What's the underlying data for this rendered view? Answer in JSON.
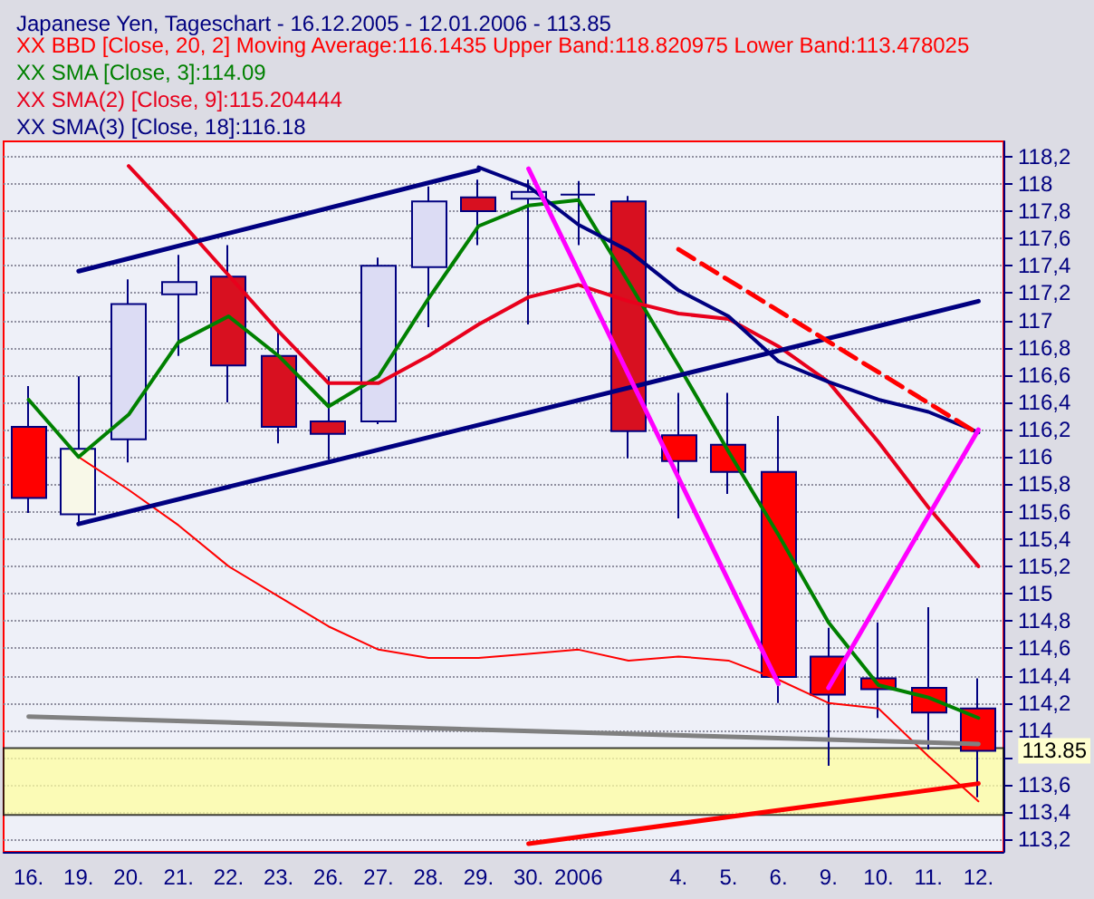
{
  "chart_data": {
    "type": "candlestick",
    "title": "Japanese Yen, Tageschart - 16.12.2005 - 12.01.2006 - 113.85",
    "categories": [
      "16.",
      "19.",
      "20.",
      "21.",
      "22.",
      "23.",
      "26.",
      "27.",
      "28.",
      "29.",
      "30.",
      "2006",
      null,
      "4.",
      "5.",
      "6.",
      "9.",
      "10.",
      "11.",
      "12."
    ],
    "ohlc": [
      [
        116.22,
        116.52,
        115.59,
        115.7
      ],
      [
        115.58,
        116.59,
        115.51,
        116.06
      ],
      [
        116.13,
        117.3,
        115.96,
        117.12
      ],
      [
        117.19,
        117.48,
        116.74,
        117.28
      ],
      [
        117.32,
        117.55,
        116.4,
        116.67
      ],
      [
        116.74,
        116.92,
        116.1,
        116.22
      ],
      [
        116.26,
        116.59,
        115.98,
        116.17
      ],
      [
        116.26,
        117.46,
        116.24,
        117.4
      ],
      [
        117.39,
        117.98,
        116.95,
        117.87
      ],
      [
        117.9,
        118.03,
        117.55,
        117.8
      ],
      [
        117.89,
        118.03,
        116.97,
        117.94
      ],
      [
        117.92,
        118.02,
        117.55,
        117.92
      ],
      [
        117.87,
        117.91,
        115.99,
        116.19
      ],
      [
        116.16,
        116.47,
        115.55,
        115.97
      ],
      [
        116.09,
        116.47,
        115.73,
        115.89
      ],
      [
        115.89,
        116.3,
        114.2,
        114.39
      ],
      [
        114.54,
        114.75,
        113.74,
        114.26
      ],
      [
        114.38,
        114.79,
        114.09,
        114.3
      ],
      [
        114.31,
        114.9,
        113.86,
        114.13
      ],
      [
        114.16,
        114.38,
        113.51,
        113.85
      ]
    ],
    "colors": [
      "#ff0000",
      "#f8f8e8",
      "#dcdcf4",
      "#dcdcf4",
      "#d81020",
      "#d81020",
      "#d81020",
      "#dcdcf4",
      "#dcdcf4",
      "#d81020",
      "#dcdcf4",
      "#000080",
      "#d81020",
      "#ff0000",
      "#ff0000",
      "#ff0000",
      "#ff0000",
      "#ff0000",
      "#ff0000",
      "#ff0000"
    ],
    "series": [
      {
        "type": "line",
        "name": "XX BBD [Close, 20, 2] Moving Average:116.1435 Upper Band:118.820975 Lower Band:113.478025",
        "color": "#ff0000",
        "values": [
          null,
          116.0,
          115.76,
          115.5,
          115.2,
          114.98,
          114.76,
          114.59,
          114.53,
          114.53,
          114.56,
          114.59,
          114.51,
          114.54,
          114.51,
          114.37,
          114.2,
          114.16,
          113.81,
          113.48
        ]
      },
      {
        "type": "line",
        "name": "XX SMA [Close, 3]:114.09",
        "color": "#008000",
        "values": [
          116.42,
          116.0,
          116.31,
          116.84,
          117.03,
          116.74,
          116.37,
          116.59,
          117.16,
          117.69,
          117.84,
          117.88,
          117.28,
          116.67,
          116.04,
          115.43,
          114.79,
          114.33,
          114.24,
          114.09
        ]
      },
      {
        "type": "line",
        "name": "XX SMA(2) [Close, 9]:115.204444",
        "color": "#e8001c",
        "values": [
          null,
          null,
          118.13,
          117.74,
          117.33,
          116.92,
          116.54,
          116.54,
          116.74,
          116.97,
          117.17,
          117.26,
          117.14,
          117.05,
          117.01,
          116.81,
          116.55,
          116.11,
          115.63,
          115.2
        ]
      },
      {
        "type": "line",
        "name": "XX SMA(3) [Close, 18]:116.18",
        "color": "#000080",
        "values": [
          null,
          null,
          null,
          null,
          null,
          null,
          null,
          null,
          null,
          118.12,
          117.98,
          117.7,
          117.51,
          117.22,
          117.03,
          116.7,
          116.55,
          116.42,
          116.33,
          116.18
        ]
      },
      {
        "type": "line",
        "color": "#000080",
        "x": [
          "19.",
          "29."
        ],
        "values": [
          117.36,
          118.1
        ]
      },
      {
        "type": "line",
        "color": "#000080",
        "x": [
          "19.",
          "12."
        ],
        "values": [
          115.51,
          117.14
        ]
      },
      {
        "type": "line",
        "color": "#ff00ff",
        "x": [
          "30.",
          "6."
        ],
        "values": [
          118.11,
          114.34
        ]
      },
      {
        "type": "line",
        "color": "#ff00ff",
        "x": [
          "9.",
          "12."
        ],
        "values": [
          114.31,
          116.2
        ]
      },
      {
        "type": "line",
        "color": "#ff0000",
        "line_style": "dashed",
        "x": [
          "4.",
          "12."
        ],
        "values": [
          117.52,
          116.17
        ]
      },
      {
        "type": "line",
        "color": "#808080",
        "x": [
          "16.",
          "12."
        ],
        "values": [
          114.1,
          113.9
        ]
      },
      {
        "type": "line",
        "color": "#ff0000",
        "x": [
          "30.",
          "12."
        ],
        "values": [
          113.17,
          113.61
        ]
      }
    ],
    "bands": [
      {
        "axis": "y",
        "from": 113.38,
        "to": 113.87,
        "color": "#ffffa0"
      }
    ],
    "annotations": [
      "113.85"
    ],
    "ylim": [
      113.11,
      118.31
    ],
    "yticks": [
      {
        "value": 113.2,
        "label": "113,2"
      },
      {
        "value": 113.4,
        "label": "113,4"
      },
      {
        "value": 113.6,
        "label": "113,6"
      },
      {
        "value": 113.8,
        "label": null
      },
      {
        "value": 114,
        "label": "114"
      },
      {
        "value": 114.2,
        "label": "114,2"
      },
      {
        "value": 114.4,
        "label": "114,4"
      },
      {
        "value": 114.6,
        "label": "114,6"
      },
      {
        "value": 114.8,
        "label": "114,8"
      },
      {
        "value": 115,
        "label": "115"
      },
      {
        "value": 115.2,
        "label": "115,2"
      },
      {
        "value": 115.4,
        "label": "115,4"
      },
      {
        "value": 115.6,
        "label": "115,6"
      },
      {
        "value": 115.8,
        "label": "115,8"
      },
      {
        "value": 116,
        "label": "116"
      },
      {
        "value": 116.2,
        "label": "116,2"
      },
      {
        "value": 116.4,
        "label": "116,4"
      },
      {
        "value": 116.6,
        "label": "116,6"
      },
      {
        "value": 116.8,
        "label": "116,8"
      },
      {
        "value": 117,
        "label": "117"
      },
      {
        "value": 117.2,
        "label": "117,2"
      },
      {
        "value": 117.4,
        "label": "117,4"
      },
      {
        "value": 117.6,
        "label": "117,6"
      },
      {
        "value": 117.8,
        "label": "117,8"
      },
      {
        "value": 118,
        "label": "118"
      },
      {
        "value": 118.2,
        "label": "118,2"
      }
    ],
    "grid": "y",
    "legend": "top left",
    "marker": "none",
    "line_style": "solid"
  }
}
